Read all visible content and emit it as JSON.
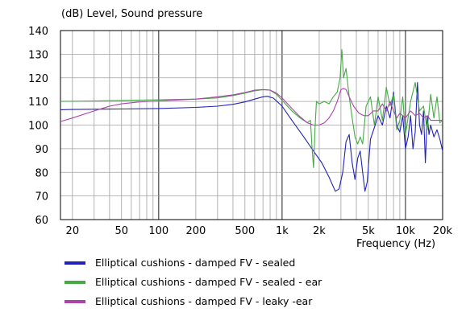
{
  "chart_data": {
    "type": "line",
    "title": "",
    "ylabel": "(dB)  Level, Sound pressure",
    "xlabel": "Frequency  (Hz)",
    "x_scale": "log",
    "xlim": [
      16,
      20000
    ],
    "ylim": [
      60,
      140
    ],
    "grid": true,
    "legend_position": "bottom",
    "y_ticks": [
      60,
      70,
      80,
      90,
      100,
      110,
      120,
      130,
      140
    ],
    "x_ticks": [
      {
        "value": 20,
        "label": "20"
      },
      {
        "value": 50,
        "label": "50"
      },
      {
        "value": 100,
        "label": "100"
      },
      {
        "value": 200,
        "label": "200"
      },
      {
        "value": 500,
        "label": "500"
      },
      {
        "value": 1000,
        "label": "1k"
      },
      {
        "value": 2000,
        "label": "2k"
      },
      {
        "value": 5000,
        "label": "5k"
      },
      {
        "value": 10000,
        "label": "10k"
      },
      {
        "value": 20000,
        "label": "20k"
      }
    ],
    "series": [
      {
        "name": "Elliptical cushions - damped FV - sealed",
        "color": "#2222bb",
        "points": [
          [
            16,
            106.5
          ],
          [
            20,
            106.6
          ],
          [
            30,
            106.7
          ],
          [
            50,
            106.8
          ],
          [
            100,
            107
          ],
          [
            200,
            107.5
          ],
          [
            300,
            108
          ],
          [
            400,
            108.8
          ],
          [
            500,
            109.8
          ],
          [
            600,
            111
          ],
          [
            700,
            112
          ],
          [
            760,
            112.2
          ],
          [
            850,
            111.4
          ],
          [
            1000,
            108
          ],
          [
            1200,
            102
          ],
          [
            1500,
            95
          ],
          [
            1800,
            89
          ],
          [
            2100,
            84
          ],
          [
            2400,
            78
          ],
          [
            2700,
            72
          ],
          [
            2900,
            73
          ],
          [
            3100,
            80
          ],
          [
            3300,
            93
          ],
          [
            3500,
            96
          ],
          [
            3700,
            84
          ],
          [
            3900,
            77
          ],
          [
            4100,
            86
          ],
          [
            4300,
            89
          ],
          [
            4500,
            80
          ],
          [
            4700,
            72
          ],
          [
            4900,
            76
          ],
          [
            5200,
            94
          ],
          [
            5600,
            99
          ],
          [
            6000,
            104
          ],
          [
            6500,
            100
          ],
          [
            7000,
            108
          ],
          [
            7500,
            103
          ],
          [
            8000,
            114
          ],
          [
            8500,
            100
          ],
          [
            9000,
            97
          ],
          [
            9500,
            104
          ],
          [
            10000,
            90
          ],
          [
            10500,
            95
          ],
          [
            11000,
            104
          ],
          [
            11500,
            90
          ],
          [
            12000,
            97
          ],
          [
            12500,
            118
          ],
          [
            13000,
            100
          ],
          [
            13500,
            96
          ],
          [
            14000,
            106
          ],
          [
            14500,
            84
          ],
          [
            15000,
            104
          ],
          [
            15500,
            96
          ],
          [
            16000,
            100
          ],
          [
            17000,
            95
          ],
          [
            18000,
            98
          ],
          [
            19000,
            94
          ],
          [
            20000,
            89
          ]
        ]
      },
      {
        "name": "Elliptical cushions - damped FV - sealed - ear",
        "color": "#44aa44",
        "points": [
          [
            16,
            110
          ],
          [
            30,
            110.2
          ],
          [
            50,
            110.4
          ],
          [
            100,
            110.7
          ],
          [
            200,
            111
          ],
          [
            300,
            111.5
          ],
          [
            400,
            112.5
          ],
          [
            500,
            113.5
          ],
          [
            600,
            114.5
          ],
          [
            700,
            115
          ],
          [
            800,
            114.8
          ],
          [
            900,
            113
          ],
          [
            1000,
            110.5
          ],
          [
            1200,
            106
          ],
          [
            1400,
            103
          ],
          [
            1600,
            101
          ],
          [
            1700,
            102
          ],
          [
            1750,
            90
          ],
          [
            1800,
            82
          ],
          [
            1850,
            99
          ],
          [
            1900,
            110
          ],
          [
            2000,
            109
          ],
          [
            2200,
            110
          ],
          [
            2400,
            109
          ],
          [
            2600,
            112
          ],
          [
            2800,
            114
          ],
          [
            2950,
            120
          ],
          [
            3050,
            132
          ],
          [
            3150,
            120
          ],
          [
            3300,
            124
          ],
          [
            3500,
            112
          ],
          [
            3700,
            103
          ],
          [
            3900,
            95
          ],
          [
            4100,
            92
          ],
          [
            4300,
            95
          ],
          [
            4500,
            92
          ],
          [
            4800,
            108
          ],
          [
            5200,
            112
          ],
          [
            5600,
            100
          ],
          [
            6000,
            112
          ],
          [
            6500,
            102
          ],
          [
            7000,
            116
          ],
          [
            7500,
            108
          ],
          [
            8000,
            113
          ],
          [
            8500,
            98
          ],
          [
            9000,
            102
          ],
          [
            9500,
            112
          ],
          [
            10000,
            96
          ],
          [
            11000,
            110
          ],
          [
            12000,
            118
          ],
          [
            13000,
            106
          ],
          [
            14000,
            108
          ],
          [
            15000,
            98
          ],
          [
            16000,
            113
          ],
          [
            17000,
            103
          ],
          [
            18000,
            112
          ],
          [
            19000,
            101
          ],
          [
            20000,
            102
          ]
        ]
      },
      {
        "name": "Elliptical cushions - damped FV - leaky -ear",
        "color": "#aa44aa",
        "points": [
          [
            16,
            101.5
          ],
          [
            20,
            103
          ],
          [
            30,
            106
          ],
          [
            40,
            108
          ],
          [
            50,
            109
          ],
          [
            70,
            109.8
          ],
          [
            100,
            110.2
          ],
          [
            200,
            111
          ],
          [
            300,
            112
          ],
          [
            400,
            112.8
          ],
          [
            500,
            113.8
          ],
          [
            600,
            114.8
          ],
          [
            700,
            115
          ],
          [
            800,
            114.8
          ],
          [
            900,
            113.5
          ],
          [
            1000,
            111.5
          ],
          [
            1200,
            107
          ],
          [
            1400,
            103.5
          ],
          [
            1600,
            101
          ],
          [
            1800,
            100
          ],
          [
            2000,
            100
          ],
          [
            2200,
            101
          ],
          [
            2400,
            103
          ],
          [
            2600,
            106
          ],
          [
            2800,
            110
          ],
          [
            3000,
            115
          ],
          [
            3150,
            115.5
          ],
          [
            3300,
            115
          ],
          [
            3500,
            112
          ],
          [
            3800,
            108
          ],
          [
            4200,
            105
          ],
          [
            4600,
            104
          ],
          [
            5000,
            104
          ],
          [
            5500,
            106
          ],
          [
            6000,
            106
          ],
          [
            6500,
            109
          ],
          [
            7000,
            106
          ],
          [
            7500,
            110
          ],
          [
            8000,
            106
          ],
          [
            8500,
            103
          ],
          [
            9000,
            105
          ],
          [
            10000,
            103
          ],
          [
            11000,
            106
          ],
          [
            12000,
            104
          ],
          [
            13000,
            105
          ],
          [
            14000,
            103
          ],
          [
            15000,
            104
          ],
          [
            16000,
            102
          ],
          [
            18000,
            102
          ],
          [
            20000,
            102
          ]
        ]
      }
    ]
  }
}
